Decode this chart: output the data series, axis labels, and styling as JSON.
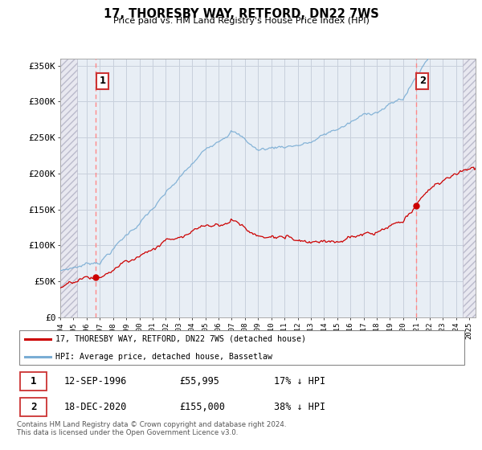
{
  "title": "17, THORESBY WAY, RETFORD, DN22 7WS",
  "subtitle": "Price paid vs. HM Land Registry's House Price Index (HPI)",
  "ylabel_ticks": [
    "£0",
    "£50K",
    "£100K",
    "£150K",
    "£200K",
    "£250K",
    "£300K",
    "£350K"
  ],
  "ylim": [
    0,
    360000
  ],
  "xlim_start": 1994.0,
  "xlim_end": 2025.5,
  "hatch_left_end": 1995.25,
  "hatch_right_start": 2024.5,
  "sale1_date": 1996.7,
  "sale1_price": 55995,
  "sale2_date": 2020.96,
  "sale2_price": 155000,
  "line_color_property": "#cc0000",
  "line_color_hpi": "#7aadd4",
  "dot_color": "#cc0000",
  "dashed_line_color": "#ff8888",
  "hatch_facecolor": "#e8e8f0",
  "hatch_edgecolor": "#bbbbcc",
  "plot_bg": "#e8eef5",
  "grid_color": "#c8d0dc",
  "legend_property": "17, THORESBY WAY, RETFORD, DN22 7WS (detached house)",
  "legend_hpi": "HPI: Average price, detached house, Bassetlaw",
  "table_rows": [
    {
      "num": "1",
      "date": "12-SEP-1996",
      "price": "£55,995",
      "note": "17% ↓ HPI"
    },
    {
      "num": "2",
      "date": "18-DEC-2020",
      "price": "£155,000",
      "note": "38% ↓ HPI"
    }
  ],
  "footer": "Contains HM Land Registry data © Crown copyright and database right 2024.\nThis data is licensed under the Open Government Licence v3.0.",
  "box_edgecolor": "#cc3333",
  "legend_border": "#888888"
}
